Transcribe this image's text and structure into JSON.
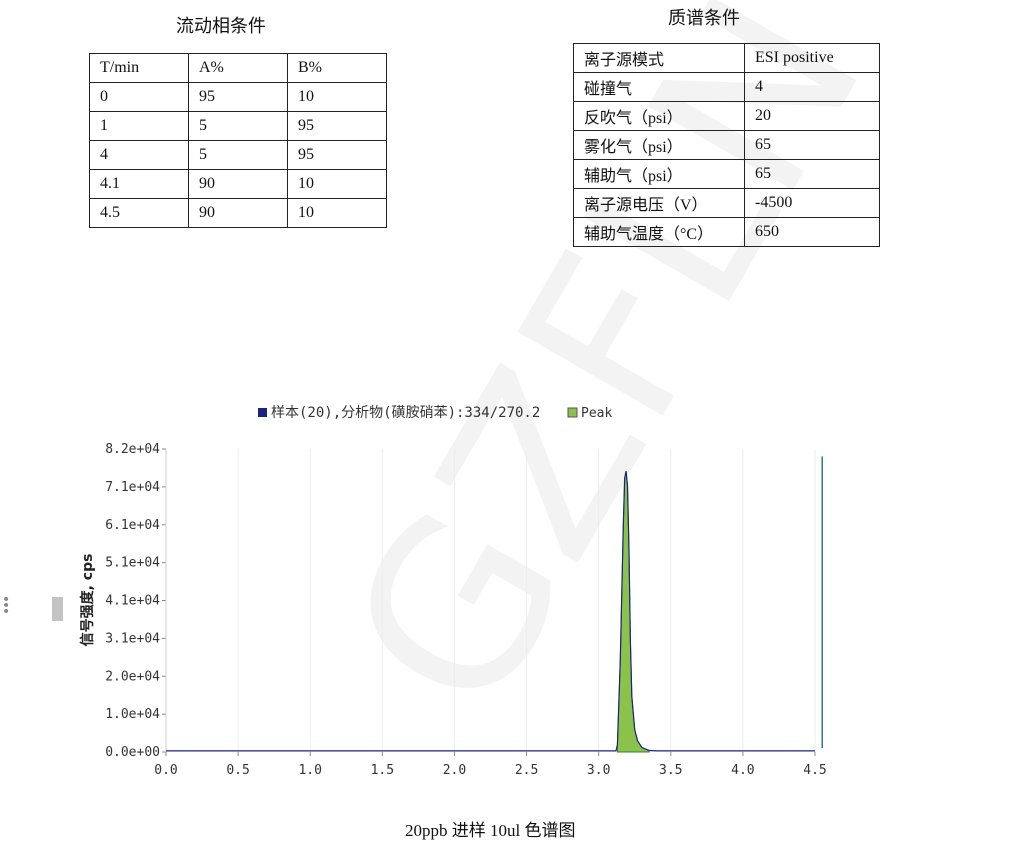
{
  "mobile_phase": {
    "caption": "流动相条件",
    "headers": [
      "T/min",
      "A%",
      "B%"
    ],
    "rows": [
      [
        "0",
        "95",
        "10"
      ],
      [
        "1",
        "5",
        "95"
      ],
      [
        "4",
        "5",
        "95"
      ],
      [
        "4.1",
        "90",
        "10"
      ],
      [
        "4.5",
        "90",
        "10"
      ]
    ]
  },
  "ms_conditions": {
    "caption": "质谱条件",
    "rows": [
      [
        "离子源模式",
        "ESI positive"
      ],
      [
        "碰撞气",
        "4"
      ],
      [
        "反吹气（psi）",
        "20"
      ],
      [
        "雾化气（psi）",
        "65"
      ],
      [
        "辅助气（psi）",
        "65"
      ],
      [
        "离子源电压（V）",
        "-4500"
      ],
      [
        "辅助气温度（°C）",
        "650"
      ]
    ]
  },
  "watermark": "GZFLN",
  "figure_caption": "20ppb  进样  10ul 色谱图",
  "chart_data": {
    "type": "line",
    "legend": [
      {
        "name": "样本(20),分析物(磺胺硝苯):334/270.2",
        "color": "#1a237e"
      },
      {
        "name": "Peak",
        "color": "#8bc34a"
      }
    ],
    "legend_placement": "top",
    "ylabel": "信号强度, cps",
    "xlabel": "",
    "xlim": [
      0,
      4.5
    ],
    "ylim": [
      0,
      82000
    ],
    "x_ticks": [
      "0.0",
      "0.5",
      "1.0",
      "1.5",
      "2.0",
      "2.5",
      "3.0",
      "3.5",
      "4.0",
      "4.5"
    ],
    "y_ticks": [
      "0.0e+00",
      "1.0e+04",
      "2.0e+04",
      "3.1e+04",
      "4.1e+04",
      "5.1e+04",
      "6.1e+04",
      "7.1e+04",
      "8.2e+04"
    ],
    "grid": "vertical faint",
    "series": [
      {
        "name": "样本(20),分析物(磺胺硝苯):334/270.2",
        "x": [
          0,
          3.12,
          3.13,
          3.15,
          3.17,
          3.18,
          3.19,
          3.2,
          3.21,
          3.22,
          3.23,
          3.25,
          3.27,
          3.3,
          3.35,
          3.4,
          4.5
        ],
        "y": [
          300,
          300,
          2000,
          25000,
          60000,
          74000,
          76000,
          72000,
          55000,
          30000,
          15000,
          6000,
          3000,
          1200,
          400,
          300,
          300
        ]
      }
    ],
    "peak": {
      "x_start": 3.13,
      "x_end": 3.35,
      "apex_x": 3.19,
      "apex_y": 76000
    },
    "marker_line": {
      "x": 4.55,
      "y": 80000,
      "color": "#2e7d7d"
    }
  }
}
